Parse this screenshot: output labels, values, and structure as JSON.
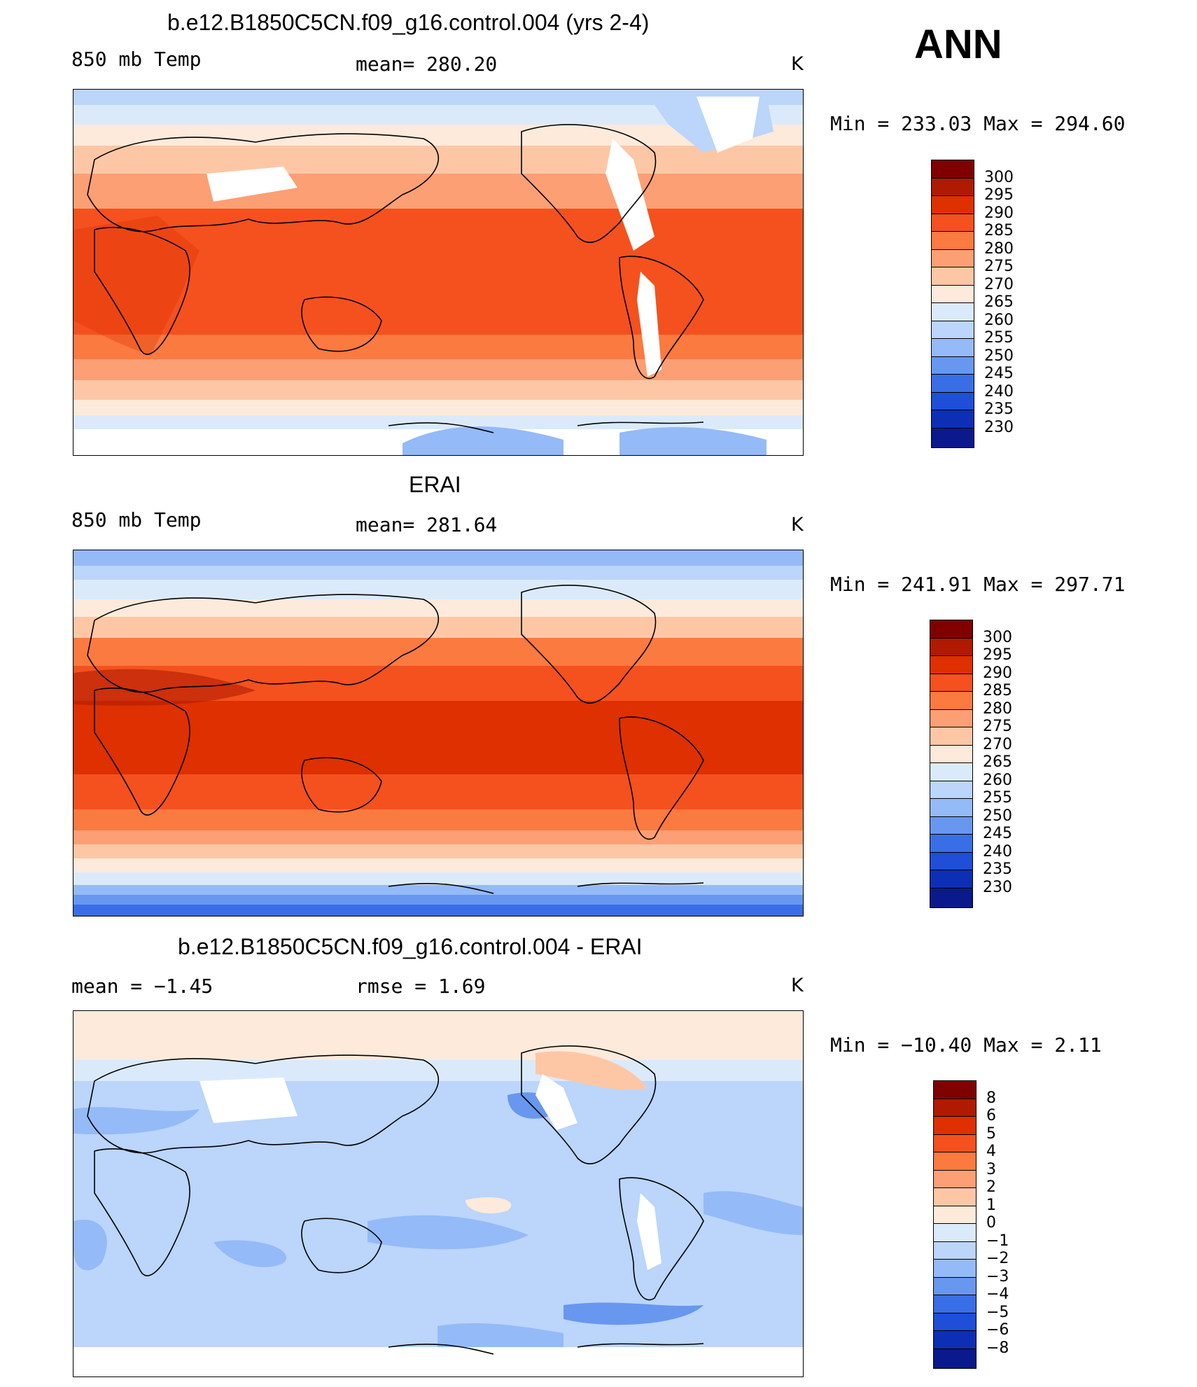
{
  "header": {
    "season": "ANN"
  },
  "panels": [
    {
      "id": "model",
      "title": "b.e12.B1850C5CN.f09_g16.control.004 (yrs 2-4)",
      "left_label": "850 mb Temp",
      "center_label": "mean=  280.20",
      "units": "K",
      "minmax": "Min  =  233.03  Max  =  294.60",
      "colorbar_labels": [
        "300",
        "295",
        "290",
        "285",
        "280",
        "275",
        "270",
        "265",
        "260",
        "255",
        "250",
        "245",
        "240",
        "235",
        "230"
      ]
    },
    {
      "id": "obs",
      "title": "ERAI",
      "left_label": "850 mb Temp",
      "center_label": "mean=  281.64",
      "units": "K",
      "minmax": "Min  =  241.91  Max  =  297.71",
      "colorbar_labels": [
        "300",
        "295",
        "290",
        "285",
        "280",
        "275",
        "270",
        "265",
        "260",
        "255",
        "250",
        "245",
        "240",
        "235",
        "230"
      ]
    },
    {
      "id": "diff",
      "title": "b.e12.B1850C5CN.f09_g16.control.004 - ERAI",
      "left_label": "mean  =    −1.45",
      "center_label": "rmse  =     1.69",
      "units": "K",
      "minmax": "Min  =  −10.40  Max  =     2.11",
      "colorbar_labels": [
        "8",
        "6",
        "5",
        "4",
        "3",
        "2",
        "1",
        "0",
        "−1",
        "−2",
        "−3",
        "−4",
        "−5",
        "−6",
        "−8"
      ]
    }
  ],
  "colors": {
    "palette": [
      "#800000",
      "#b01a00",
      "#de3000",
      "#f4511e",
      "#fa7a40",
      "#fc9f74",
      "#fdc7a6",
      "#feeadb",
      "#dbeafb",
      "#bbd5fb",
      "#95baf8",
      "#6897f0",
      "#3a6ee6",
      "#1e4fd6",
      "#0d2fb5",
      "#0a1a8c"
    ]
  }
}
